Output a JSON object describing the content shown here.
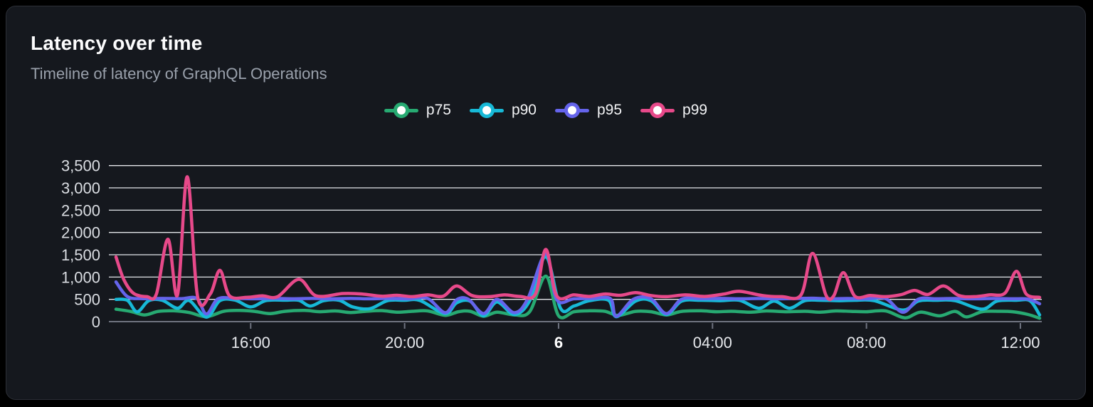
{
  "card": {
    "title": "Latency over time",
    "subtitle": "Timeline of latency of GraphQL Operations"
  },
  "colors": {
    "page_background": "#000000",
    "card_background": "#15181e",
    "card_border": "#2c2f37",
    "gridline": "#e4e6ea",
    "axis_line": "#6f7380",
    "tick_mark": "#6f7380",
    "y_label": "#dadde2",
    "x_label": "#e7e9ed",
    "x_label_bold": "#ffffff"
  },
  "chart_data": {
    "type": "line",
    "title": "Latency over time",
    "subtitle": "Timeline of latency of GraphQL Operations",
    "xlabel": "",
    "ylabel": "",
    "legend_position": "top",
    "grid": true,
    "x_unit_hours_from_start": true,
    "x_range_hours": [
      0,
      24
    ],
    "y_axis": {
      "min": 0,
      "max": 3500,
      "tick_step": 500,
      "ticks": [
        {
          "value": 0,
          "label": "0"
        },
        {
          "value": 500,
          "label": "500"
        },
        {
          "value": 1000,
          "label": "1,000"
        },
        {
          "value": 1500,
          "label": "1,500"
        },
        {
          "value": 2000,
          "label": "2,000"
        },
        {
          "value": 2500,
          "label": "2,500"
        },
        {
          "value": 3000,
          "label": "3,000"
        },
        {
          "value": 3500,
          "label": "3,500"
        }
      ]
    },
    "x_axis": {
      "ticks": [
        {
          "t": 3.5,
          "label": "16:00",
          "bold": false
        },
        {
          "t": 7.5,
          "label": "20:00",
          "bold": false
        },
        {
          "t": 11.5,
          "label": "6",
          "bold": true
        },
        {
          "t": 15.5,
          "label": "04:00",
          "bold": false
        },
        {
          "t": 19.5,
          "label": "08:00",
          "bold": false
        },
        {
          "t": 23.5,
          "label": "12:00",
          "bold": false
        }
      ]
    },
    "series": [
      {
        "name": "p75",
        "color": "#27aa72",
        "points": [
          [
            0,
            280
          ],
          [
            0.4,
            225
          ],
          [
            0.75,
            150
          ],
          [
            1.1,
            230
          ],
          [
            1.5,
            242
          ],
          [
            1.9,
            205
          ],
          [
            2.35,
            110
          ],
          [
            2.8,
            232
          ],
          [
            3.2,
            250
          ],
          [
            3.6,
            230
          ],
          [
            4.0,
            180
          ],
          [
            4.4,
            232
          ],
          [
            4.9,
            250
          ],
          [
            5.3,
            222
          ],
          [
            5.7,
            240
          ],
          [
            6.1,
            205
          ],
          [
            6.5,
            232
          ],
          [
            6.9,
            248
          ],
          [
            7.3,
            212
          ],
          [
            7.7,
            232
          ],
          [
            8.1,
            240
          ],
          [
            8.55,
            140
          ],
          [
            8.9,
            222
          ],
          [
            9.2,
            232
          ],
          [
            9.55,
            120
          ],
          [
            9.9,
            212
          ],
          [
            10.35,
            150
          ],
          [
            10.75,
            225
          ],
          [
            11.17,
            1020
          ],
          [
            11.5,
            130
          ],
          [
            11.9,
            222
          ],
          [
            12.3,
            242
          ],
          [
            12.7,
            232
          ],
          [
            13.05,
            140
          ],
          [
            13.5,
            230
          ],
          [
            13.9,
            222
          ],
          [
            14.3,
            150
          ],
          [
            14.7,
            230
          ],
          [
            15.2,
            242
          ],
          [
            15.6,
            222
          ],
          [
            16.0,
            232
          ],
          [
            16.5,
            212
          ],
          [
            16.9,
            240
          ],
          [
            17.4,
            222
          ],
          [
            17.9,
            232
          ],
          [
            18.3,
            212
          ],
          [
            18.7,
            240
          ],
          [
            19.1,
            230
          ],
          [
            19.5,
            222
          ],
          [
            20.0,
            240
          ],
          [
            20.5,
            85
          ],
          [
            20.9,
            212
          ],
          [
            21.4,
            130
          ],
          [
            21.8,
            230
          ],
          [
            22.1,
            105
          ],
          [
            22.5,
            222
          ],
          [
            22.9,
            232
          ],
          [
            23.3,
            222
          ],
          [
            23.7,
            160
          ],
          [
            24,
            75
          ]
        ]
      },
      {
        "name": "p90",
        "color": "#17b9d7",
        "points": [
          [
            0,
            500
          ],
          [
            0.3,
            475
          ],
          [
            0.55,
            220
          ],
          [
            0.85,
            470
          ],
          [
            1.2,
            480
          ],
          [
            1.6,
            300
          ],
          [
            1.9,
            472
          ],
          [
            2.35,
            100
          ],
          [
            2.7,
            470
          ],
          [
            3.1,
            480
          ],
          [
            3.5,
            330
          ],
          [
            3.9,
            472
          ],
          [
            4.4,
            480
          ],
          [
            4.75,
            478
          ],
          [
            5.05,
            350
          ],
          [
            5.4,
            470
          ],
          [
            5.8,
            478
          ],
          [
            6.15,
            330
          ],
          [
            6.6,
            290
          ],
          [
            7.05,
            468
          ],
          [
            7.5,
            478
          ],
          [
            7.9,
            472
          ],
          [
            8.55,
            180
          ],
          [
            8.85,
            420
          ],
          [
            9.2,
            460
          ],
          [
            9.55,
            130
          ],
          [
            9.9,
            440
          ],
          [
            10.35,
            160
          ],
          [
            10.75,
            470
          ],
          [
            11.17,
            1450
          ],
          [
            11.55,
            300
          ],
          [
            11.9,
            350
          ],
          [
            12.3,
            470
          ],
          [
            12.8,
            478
          ],
          [
            13.0,
            110
          ],
          [
            13.5,
            460
          ],
          [
            13.9,
            470
          ],
          [
            14.3,
            160
          ],
          [
            14.7,
            460
          ],
          [
            15.2,
            478
          ],
          [
            15.7,
            470
          ],
          [
            16.2,
            478
          ],
          [
            16.7,
            300
          ],
          [
            17.1,
            462
          ],
          [
            17.5,
            300
          ],
          [
            17.9,
            470
          ],
          [
            18.3,
            478
          ],
          [
            18.8,
            470
          ],
          [
            19.2,
            478
          ],
          [
            19.7,
            470
          ],
          [
            20.45,
            260
          ],
          [
            20.85,
            462
          ],
          [
            21.3,
            478
          ],
          [
            21.8,
            470
          ],
          [
            22.5,
            280
          ],
          [
            22.9,
            462
          ],
          [
            23.4,
            478
          ],
          [
            23.75,
            468
          ],
          [
            24,
            150
          ]
        ]
      },
      {
        "name": "p95",
        "color": "#6564ec",
        "points": [
          [
            0,
            890
          ],
          [
            0.3,
            560
          ],
          [
            0.7,
            515
          ],
          [
            1.2,
            520
          ],
          [
            1.7,
            515
          ],
          [
            2.1,
            520
          ],
          [
            2.35,
            170
          ],
          [
            2.65,
            510
          ],
          [
            3.1,
            520
          ],
          [
            3.6,
            512
          ],
          [
            4.1,
            520
          ],
          [
            4.6,
            512
          ],
          [
            5.1,
            520
          ],
          [
            5.6,
            512
          ],
          [
            6.1,
            520
          ],
          [
            6.6,
            512
          ],
          [
            7.1,
            520
          ],
          [
            7.6,
            512
          ],
          [
            8.1,
            518
          ],
          [
            8.55,
            200
          ],
          [
            8.85,
            490
          ],
          [
            9.15,
            505
          ],
          [
            9.55,
            180
          ],
          [
            9.9,
            500
          ],
          [
            10.35,
            200
          ],
          [
            10.7,
            512
          ],
          [
            11.17,
            1520
          ],
          [
            11.45,
            495
          ],
          [
            11.9,
            512
          ],
          [
            12.4,
            520
          ],
          [
            12.85,
            512
          ],
          [
            13.0,
            120
          ],
          [
            13.45,
            505
          ],
          [
            13.9,
            512
          ],
          [
            14.3,
            180
          ],
          [
            14.7,
            505
          ],
          [
            15.2,
            515
          ],
          [
            15.7,
            520
          ],
          [
            16.2,
            512
          ],
          [
            16.7,
            518
          ],
          [
            17.2,
            512
          ],
          [
            17.7,
            518
          ],
          [
            18.1,
            525
          ],
          [
            18.5,
            512
          ],
          [
            19.0,
            518
          ],
          [
            19.5,
            512
          ],
          [
            20.0,
            515
          ],
          [
            20.45,
            210
          ],
          [
            20.85,
            505
          ],
          [
            21.3,
            512
          ],
          [
            21.8,
            518
          ],
          [
            22.3,
            512
          ],
          [
            22.8,
            518
          ],
          [
            23.3,
            512
          ],
          [
            23.7,
            505
          ],
          [
            24,
            400
          ]
        ]
      },
      {
        "name": "p99",
        "color": "#e7498a",
        "points": [
          [
            0,
            1450
          ],
          [
            0.2,
            950
          ],
          [
            0.45,
            640
          ],
          [
            0.8,
            560
          ],
          [
            1.05,
            620
          ],
          [
            1.35,
            1850
          ],
          [
            1.6,
            600
          ],
          [
            1.85,
            3250
          ],
          [
            2.12,
            560
          ],
          [
            2.45,
            620
          ],
          [
            2.7,
            1150
          ],
          [
            2.95,
            580
          ],
          [
            3.4,
            545
          ],
          [
            3.8,
            580
          ],
          [
            4.2,
            560
          ],
          [
            4.75,
            950
          ],
          [
            5.2,
            580
          ],
          [
            5.9,
            630
          ],
          [
            6.4,
            620
          ],
          [
            6.9,
            570
          ],
          [
            7.3,
            590
          ],
          [
            7.7,
            560
          ],
          [
            8.1,
            600
          ],
          [
            8.5,
            570
          ],
          [
            8.85,
            800
          ],
          [
            9.25,
            585
          ],
          [
            9.7,
            560
          ],
          [
            10.1,
            600
          ],
          [
            10.5,
            565
          ],
          [
            10.9,
            620
          ],
          [
            11.17,
            1620
          ],
          [
            11.45,
            580
          ],
          [
            11.9,
            600
          ],
          [
            12.3,
            565
          ],
          [
            12.7,
            620
          ],
          [
            13.1,
            590
          ],
          [
            13.5,
            650
          ],
          [
            13.9,
            585
          ],
          [
            14.3,
            560
          ],
          [
            14.8,
            600
          ],
          [
            15.3,
            565
          ],
          [
            15.8,
            620
          ],
          [
            16.2,
            680
          ],
          [
            16.8,
            585
          ],
          [
            17.3,
            560
          ],
          [
            17.8,
            600
          ],
          [
            18.1,
            1530
          ],
          [
            18.45,
            590
          ],
          [
            18.65,
            580
          ],
          [
            18.9,
            1100
          ],
          [
            19.2,
            570
          ],
          [
            19.6,
            585
          ],
          [
            20.0,
            560
          ],
          [
            20.4,
            605
          ],
          [
            20.75,
            700
          ],
          [
            21.1,
            610
          ],
          [
            21.5,
            800
          ],
          [
            21.9,
            585
          ],
          [
            22.3,
            560
          ],
          [
            22.7,
            600
          ],
          [
            23.1,
            640
          ],
          [
            23.4,
            1130
          ],
          [
            23.65,
            620
          ],
          [
            24,
            545
          ]
        ]
      }
    ]
  }
}
